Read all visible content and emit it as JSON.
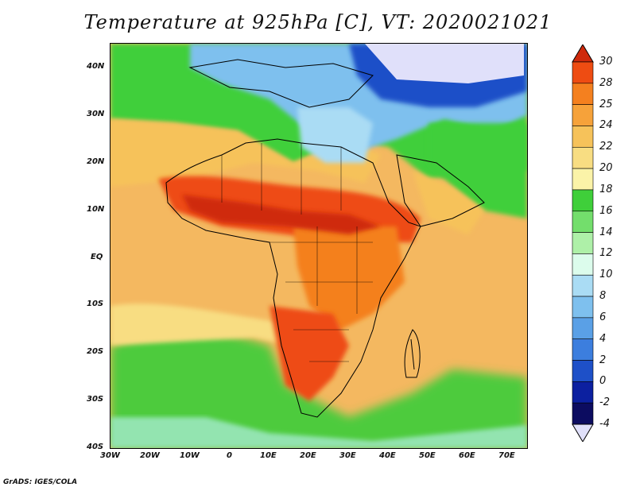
{
  "title": "Temperature at 925hPa [C], VT: 2020021021",
  "footer": "GrADS: IGES/COLA",
  "map": {
    "lon_range": [
      -30,
      76
    ],
    "lat_range": [
      -40,
      45
    ],
    "lon_ticks": [
      "30W",
      "20W",
      "10W",
      "0",
      "10E",
      "20E",
      "30E",
      "40E",
      "50E",
      "60E",
      "70E"
    ],
    "lat_ticks": [
      "40N",
      "30N",
      "20N",
      "10N",
      "EQ",
      "10S",
      "20S",
      "30S",
      "40S"
    ]
  },
  "colorbar": {
    "labels": [
      "30",
      "28",
      "25",
      "24",
      "22",
      "20",
      "18",
      "16",
      "14",
      "12",
      "10",
      "8",
      "6",
      "4",
      "2",
      "0",
      "-2",
      "-4"
    ],
    "colors": [
      "#cf2a0c",
      "#ee4c12",
      "#f4801f",
      "#f6a23a",
      "#f6c25a",
      "#f8dd82",
      "#fbf3a8",
      "#3fcf3a",
      "#73de6c",
      "#aef0a8",
      "#dcfcec",
      "#aadcf4",
      "#7ec0ee",
      "#5aa0e6",
      "#3c7ede",
      "#1e50c8",
      "#0c20a0",
      "#0c0c60",
      "#e0e0fa"
    ]
  }
}
